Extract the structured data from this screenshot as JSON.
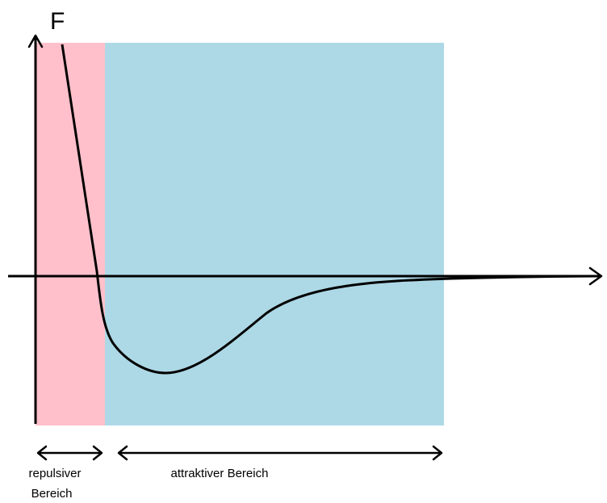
{
  "axis": {
    "y_label": "F"
  },
  "regions": {
    "repulsive": {
      "label_line1": "repulsiver",
      "label_line2": "Bereich",
      "color": "#ffc0cb"
    },
    "attractive": {
      "label": "attraktiver Bereich",
      "color": "#add8e6"
    }
  },
  "colors": {
    "line": "#000000",
    "background": "#ffffff"
  }
}
